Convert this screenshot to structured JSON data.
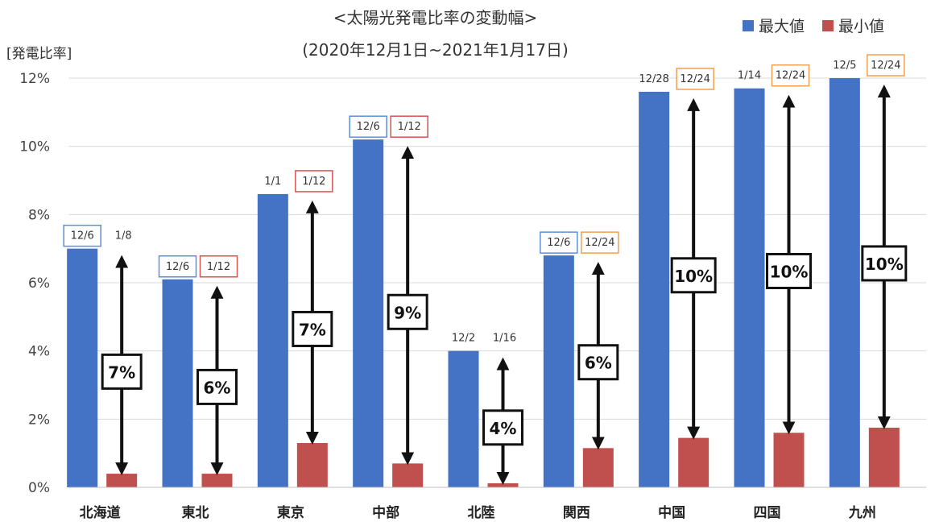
{
  "title_line1": "<太陽光発電比率の変動幅>",
  "title_line2": "(2020年12月1日~2021年1月17日)",
  "ylabel": "[発電比率]",
  "legend": [
    {
      "label": "最大値",
      "color": "#4472c4"
    },
    {
      "label": "最小値",
      "color": "#c0504d"
    }
  ],
  "chart_data": {
    "type": "bar",
    "title": "<太陽光発電比率の変動幅>",
    "subtitle": "(2020年12月1日~2021年1月17日)",
    "ylabel": "[発電比率]",
    "ylim": [
      0,
      12
    ],
    "yticks": [
      "0%",
      "2%",
      "4%",
      "6%",
      "8%",
      "10%",
      "12%"
    ],
    "categories": [
      "北海道",
      "東北",
      "東京",
      "中部",
      "北陸",
      "関西",
      "中国",
      "四国",
      "九州"
    ],
    "series": [
      {
        "name": "最大値",
        "color": "#4472c4",
        "values": [
          7.0,
          6.1,
          8.6,
          10.2,
          4.0,
          6.8,
          11.6,
          11.7,
          12.0
        ],
        "dates": [
          "12/6",
          "12/6",
          "1/1",
          "12/6",
          "12/2",
          "12/6",
          "12/28",
          "1/14",
          "12/5"
        ],
        "date_box": [
          "#5b8fd6",
          "#5b8fd6",
          "",
          "#5b8fd6",
          "",
          "#5b8fd6",
          "",
          "",
          ""
        ]
      },
      {
        "name": "最小値",
        "color": "#c0504d",
        "values": [
          0.4,
          0.4,
          1.3,
          0.7,
          0.12,
          1.15,
          1.45,
          1.6,
          1.75
        ],
        "dates": [
          "1/8",
          "1/12",
          "1/12",
          "1/12",
          "1/16",
          "12/24",
          "12/24",
          "12/24",
          "12/24"
        ],
        "date_box": [
          "",
          "#d9534f",
          "#d9534f",
          "#d9534f",
          "",
          "#f0a050",
          "#f0a050",
          "#f0a050",
          "#f0a050"
        ]
      }
    ],
    "range_labels": [
      "7%",
      "6%",
      "7%",
      "9%",
      "4%",
      "6%",
      "10%",
      "10%",
      "10%"
    ],
    "grid": true,
    "legend_position": "top-right"
  }
}
